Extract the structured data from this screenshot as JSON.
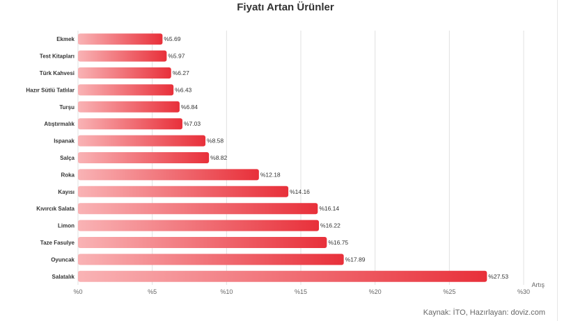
{
  "chart_data": {
    "type": "bar",
    "orientation": "horizontal",
    "title": "Fiyatı Artan Ürünler",
    "categories": [
      "Ekmek",
      "Test Kitapları",
      "Türk Kahvesi",
      "Hazır Sütlü Tatlılar",
      "Turşu",
      "Atıştırmalık",
      "Ispanak",
      "Salça",
      "Roka",
      "Kayısı",
      "Kıvırcık Salata",
      "Limon",
      "Taze Fasulye",
      "Oyuncak",
      "Salatalık"
    ],
    "values": [
      5.69,
      5.97,
      6.27,
      6.43,
      6.84,
      7.03,
      8.58,
      8.82,
      12.18,
      14.16,
      16.14,
      16.22,
      16.75,
      17.89,
      27.53
    ],
    "value_labels": [
      "%5.69",
      "%5.97",
      "%6.27",
      "%6.43",
      "%6.84",
      "%7.03",
      "%8.58",
      "%8.82",
      "%12.18",
      "%14.16",
      "%16.14",
      "%16.22",
      "%16.75",
      "%17.89",
      "%27.53"
    ],
    "x_ticks": [
      "%0",
      "%5",
      "%10",
      "%15",
      "%20",
      "%25",
      "%30"
    ],
    "xlim": [
      0,
      30
    ],
    "xlabel": "Artış",
    "grid": true,
    "colors": {
      "bar_start": "#f9b3b5",
      "bar_end": "#e8303a",
      "grid": "#e0e0e0"
    }
  },
  "footer": {
    "source": "Kaynak: İTO, Hazırlayan: doviz.com"
  }
}
